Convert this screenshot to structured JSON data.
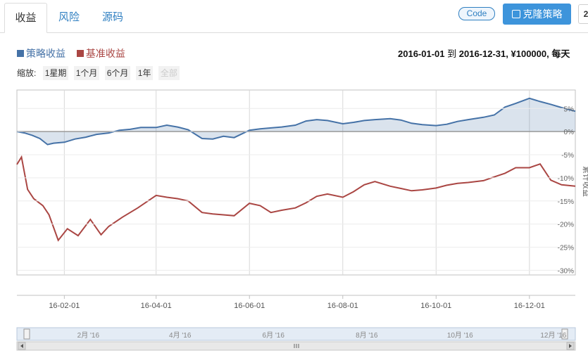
{
  "tabs": [
    {
      "label": "收益",
      "active": true
    },
    {
      "label": "风险",
      "active": false
    },
    {
      "label": "源码",
      "active": false
    }
  ],
  "toolbar": {
    "code_label": "Code",
    "clone_label": "克隆策略",
    "edge_badge": "2"
  },
  "legend": [
    {
      "name": "策略收益",
      "color": "#4572a7"
    },
    {
      "name": "基准收益",
      "color": "#aa4643"
    }
  ],
  "info": {
    "start": "2016-01-01",
    "to": "到",
    "end": "2016-12-31",
    "capital": "¥100000",
    "freq": "每天"
  },
  "zoom": {
    "label": "缩放:",
    "buttons": [
      "1星期",
      "1个月",
      "6个月",
      "1年",
      "全部"
    ],
    "disabled_index": 4
  },
  "nav_labels": [
    "2月 '16",
    "4月 '16",
    "6月 '16",
    "8月 '16",
    "10月 '16",
    "12月 '16"
  ],
  "chart_data": {
    "type": "line",
    "ylabel": "累计收益",
    "ylim": [
      -31,
      9
    ],
    "yticks": [
      "5%",
      "0%",
      "-5%",
      "-10%",
      "-15%",
      "-20%",
      "-25%",
      "-30%"
    ],
    "ytick_values": [
      5,
      0,
      -5,
      -10,
      -15,
      -20,
      -25,
      -30
    ],
    "xlim": [
      "2016-01-01",
      "2016-12-31"
    ],
    "xticks": [
      "16-02-01",
      "16-04-01",
      "16-06-01",
      "16-08-01",
      "16-10-01",
      "16-12-01"
    ],
    "series": [
      {
        "name": "策略收益",
        "color": "#4572a7",
        "x": [
          "2016-01-01",
          "2016-01-06",
          "2016-01-11",
          "2016-01-16",
          "2016-01-21",
          "2016-01-25",
          "2016-02-01",
          "2016-02-08",
          "2016-02-15",
          "2016-02-22",
          "2016-03-01",
          "2016-03-08",
          "2016-03-15",
          "2016-03-22",
          "2016-04-01",
          "2016-04-08",
          "2016-04-15",
          "2016-04-22",
          "2016-05-01",
          "2016-05-08",
          "2016-05-15",
          "2016-05-22",
          "2016-06-01",
          "2016-06-08",
          "2016-06-15",
          "2016-06-22",
          "2016-07-01",
          "2016-07-08",
          "2016-07-15",
          "2016-07-22",
          "2016-08-01",
          "2016-08-08",
          "2016-08-15",
          "2016-08-22",
          "2016-09-01",
          "2016-09-08",
          "2016-09-15",
          "2016-09-22",
          "2016-10-01",
          "2016-10-08",
          "2016-10-15",
          "2016-10-22",
          "2016-11-01",
          "2016-11-08",
          "2016-11-15",
          "2016-11-22",
          "2016-12-01",
          "2016-12-08",
          "2016-12-15",
          "2016-12-22",
          "2016-12-31"
        ],
        "values": [
          0,
          -0.3,
          -0.8,
          -1.5,
          -2.8,
          -2.5,
          -2.3,
          -1.6,
          -1.2,
          -0.6,
          -0.3,
          0.3,
          0.5,
          0.9,
          0.9,
          1.4,
          1.0,
          0.4,
          -1.5,
          -1.6,
          -1.0,
          -1.3,
          0.3,
          0.6,
          0.8,
          1.0,
          1.4,
          2.3,
          2.6,
          2.4,
          1.7,
          2.0,
          2.4,
          2.6,
          2.8,
          2.5,
          1.8,
          1.5,
          1.3,
          1.6,
          2.2,
          2.6,
          3.1,
          3.6,
          5.3,
          6.1,
          7.2,
          6.5,
          5.9,
          5.2,
          4.4
        ]
      },
      {
        "name": "基准收益",
        "color": "#aa4643",
        "x": [
          "2016-01-01",
          "2016-01-04",
          "2016-01-08",
          "2016-01-12",
          "2016-01-18",
          "2016-01-22",
          "2016-01-28",
          "2016-02-03",
          "2016-02-10",
          "2016-02-18",
          "2016-02-25",
          "2016-03-01",
          "2016-03-10",
          "2016-03-20",
          "2016-04-01",
          "2016-04-08",
          "2016-04-15",
          "2016-04-22",
          "2016-05-01",
          "2016-05-08",
          "2016-05-15",
          "2016-05-22",
          "2016-06-01",
          "2016-06-08",
          "2016-06-15",
          "2016-06-22",
          "2016-07-01",
          "2016-07-08",
          "2016-07-15",
          "2016-07-22",
          "2016-08-01",
          "2016-08-08",
          "2016-08-15",
          "2016-08-22",
          "2016-09-01",
          "2016-09-08",
          "2016-09-15",
          "2016-09-22",
          "2016-10-01",
          "2016-10-08",
          "2016-10-15",
          "2016-10-22",
          "2016-11-01",
          "2016-11-08",
          "2016-11-15",
          "2016-11-22",
          "2016-12-01",
          "2016-12-08",
          "2016-12-15",
          "2016-12-22",
          "2016-12-31"
        ],
        "values": [
          -7.1,
          -5.5,
          -12.5,
          -14.5,
          -16.0,
          -18.0,
          -23.5,
          -21.0,
          -22.5,
          -19.0,
          -22.3,
          -20.5,
          -18.5,
          -16.5,
          -13.8,
          -14.2,
          -14.5,
          -15.0,
          -17.5,
          -17.8,
          -18.0,
          -18.2,
          -15.5,
          -16.0,
          -17.5,
          -17.0,
          -16.5,
          -15.4,
          -14.0,
          -13.5,
          -14.2,
          -13.0,
          -11.5,
          -10.8,
          -11.8,
          -12.3,
          -12.8,
          -12.6,
          -12.2,
          -11.6,
          -11.2,
          -11.0,
          -10.6,
          -9.8,
          -9.0,
          -7.8,
          -7.8,
          -7.0,
          -10.5,
          -11.5,
          -11.8
        ]
      }
    ]
  }
}
